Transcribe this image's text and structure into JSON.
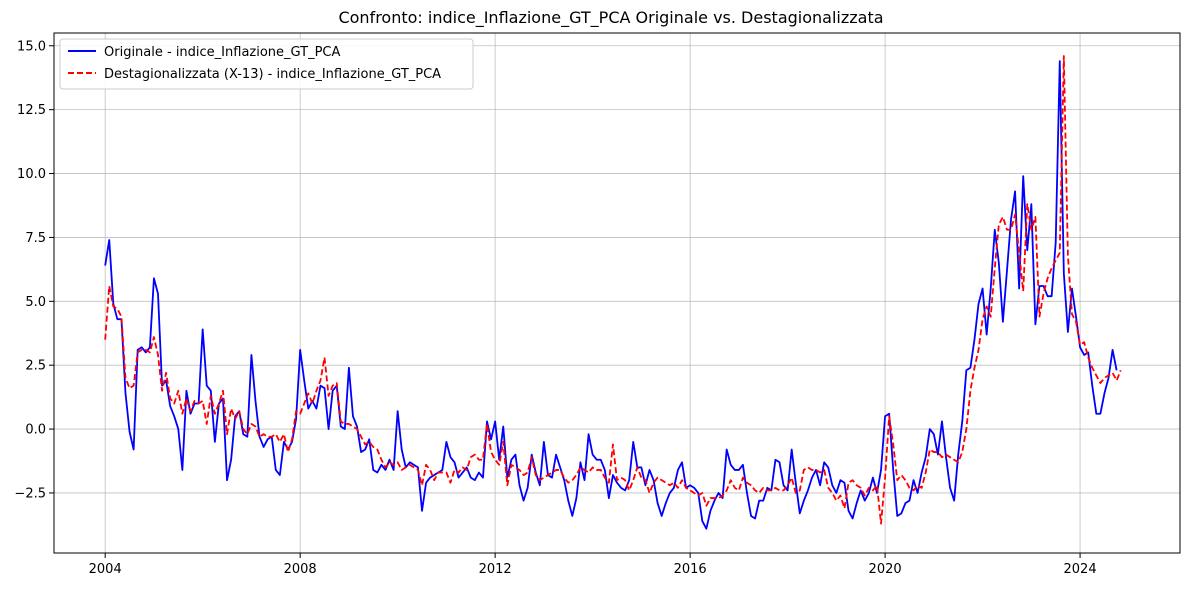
{
  "chart_data": {
    "type": "line",
    "title": "Confronto: indice_Inflazione_GT_PCA Originale vs. Destagionalizzata",
    "xlabel": "",
    "ylabel": "",
    "xlim": [
      2002.95,
      2026.05
    ],
    "ylim": [
      -4.85,
      15.5
    ],
    "x_ticks": [
      2004,
      2008,
      2012,
      2016,
      2020,
      2024
    ],
    "x_tick_labels": [
      "2004",
      "2008",
      "2012",
      "2016",
      "2020",
      "2024"
    ],
    "y_ticks": [
      -2.5,
      0.0,
      2.5,
      5.0,
      7.5,
      10.0,
      12.5,
      15.0
    ],
    "y_tick_labels": [
      "−2.5",
      "0.0",
      "2.5",
      "5.0",
      "7.5",
      "10.0",
      "12.5",
      "15.0"
    ],
    "grid": true,
    "legend_position": "top-left",
    "x_start": 2004.0,
    "x_step_months": 1,
    "series": [
      {
        "name": "Originale - indice_Inflazione_GT_PCA",
        "color": "#0000ff",
        "style": "solid",
        "values": [
          6.4,
          7.4,
          4.9,
          4.3,
          4.3,
          1.4,
          -0.1,
          -0.8,
          3.1,
          3.2,
          3.0,
          3.2,
          5.9,
          5.3,
          1.7,
          1.9,
          0.9,
          0.5,
          0.0,
          -1.6,
          1.5,
          0.6,
          1.0,
          1.0,
          3.9,
          1.7,
          1.5,
          -0.5,
          1.0,
          1.2,
          -2.0,
          -1.2,
          0.5,
          0.7,
          -0.2,
          -0.3,
          2.9,
          1.1,
          -0.3,
          -0.7,
          -0.4,
          -0.3,
          -1.6,
          -1.8,
          -0.5,
          -0.8,
          -0.5,
          0.4,
          3.1,
          1.9,
          0.8,
          1.1,
          0.8,
          1.7,
          1.6,
          0.0,
          1.5,
          1.7,
          0.1,
          0.0,
          2.4,
          0.5,
          0.1,
          -0.9,
          -0.8,
          -0.4,
          -1.6,
          -1.7,
          -1.4,
          -1.6,
          -1.2,
          -1.6,
          0.7,
          -0.8,
          -1.5,
          -1.3,
          -1.4,
          -1.5,
          -3.2,
          -2.1,
          -1.9,
          -1.8,
          -1.7,
          -1.6,
          -0.5,
          -1.1,
          -1.3,
          -1.9,
          -1.7,
          -1.5,
          -1.9,
          -2.0,
          -1.7,
          -1.9,
          0.3,
          -0.4,
          0.3,
          -1.2,
          0.1,
          -1.9,
          -1.2,
          -1.0,
          -2.2,
          -2.8,
          -2.3,
          -1.0,
          -1.7,
          -2.2,
          -0.5,
          -1.8,
          -1.9,
          -1.0,
          -1.5,
          -2.0,
          -2.8,
          -3.4,
          -2.7,
          -1.3,
          -2.0,
          -0.2,
          -1.0,
          -1.2,
          -1.2,
          -1.6,
          -2.7,
          -1.8,
          -2.1,
          -2.3,
          -2.4,
          -2.0,
          -0.5,
          -1.5,
          -1.5,
          -2.2,
          -1.6,
          -2.0,
          -2.9,
          -3.4,
          -2.9,
          -2.5,
          -2.3,
          -1.6,
          -1.3,
          -2.3,
          -2.2,
          -2.3,
          -2.5,
          -3.6,
          -3.9,
          -3.2,
          -2.8,
          -2.5,
          -2.7,
          -0.8,
          -1.4,
          -1.6,
          -1.6,
          -1.4,
          -2.5,
          -3.4,
          -3.5,
          -2.8,
          -2.8,
          -2.3,
          -2.4,
          -1.2,
          -1.3,
          -2.2,
          -2.4,
          -0.8,
          -2.1,
          -3.3,
          -2.8,
          -2.4,
          -1.9,
          -1.6,
          -2.2,
          -1.3,
          -1.5,
          -2.2,
          -2.5,
          -2.0,
          -2.1,
          -3.2,
          -3.5,
          -2.9,
          -2.4,
          -2.8,
          -2.5,
          -1.9,
          -2.5,
          -1.6,
          0.5,
          0.6,
          -1.6,
          -3.4,
          -3.3,
          -2.9,
          -2.8,
          -2.0,
          -2.5,
          -1.7,
          -1.1,
          0.0,
          -0.2,
          -1.0,
          0.3,
          -1.1,
          -2.3,
          -2.8,
          -1.0,
          0.3,
          2.3,
          2.4,
          3.5,
          4.9,
          5.5,
          3.7,
          5.5,
          7.8,
          6.5,
          4.2,
          6.2,
          8.2,
          9.3,
          5.5,
          9.9,
          7.0,
          8.8,
          4.1,
          5.6,
          5.6,
          5.2,
          5.2,
          7.3,
          14.4,
          6.1,
          3.8,
          5.5,
          4.4,
          3.2,
          2.9,
          3.0,
          1.7,
          0.6,
          0.6,
          1.4,
          2.0,
          3.1,
          2.3
        ]
      },
      {
        "name": "Destagionalizzata (X-13) - indice_Inflazione_GT_PCA",
        "color": "#ff0000",
        "style": "dashed",
        "values": [
          3.5,
          5.6,
          4.8,
          4.7,
          4.4,
          2.0,
          1.6,
          1.7,
          3.0,
          3.1,
          3.1,
          3.0,
          3.6,
          2.9,
          1.5,
          2.2,
          1.2,
          1.0,
          1.5,
          0.6,
          1.2,
          0.7,
          1.1,
          1.0,
          1.1,
          0.2,
          1.3,
          0.6,
          1.0,
          1.5,
          -0.2,
          0.8,
          0.4,
          0.7,
          0.0,
          -0.2,
          0.2,
          0.1,
          -0.3,
          -0.2,
          -0.3,
          -0.3,
          -0.2,
          -0.5,
          -0.2,
          -0.9,
          -0.4,
          0.7,
          0.6,
          1.0,
          1.4,
          1.0,
          1.5,
          1.9,
          2.8,
          1.3,
          1.7,
          1.8,
          0.3,
          0.2,
          0.2,
          0.1,
          0.0,
          -0.3,
          -0.6,
          -0.5,
          -0.7,
          -0.8,
          -1.2,
          -1.5,
          -1.3,
          -1.4,
          -1.3,
          -1.6,
          -1.5,
          -1.4,
          -1.5,
          -1.6,
          -2.2,
          -1.4,
          -1.6,
          -2.0,
          -1.7,
          -1.7,
          -1.7,
          -2.1,
          -1.6,
          -1.7,
          -1.5,
          -1.6,
          -1.1,
          -1.0,
          -1.2,
          -1.2,
          0.2,
          -0.9,
          -1.2,
          -1.4,
          -0.5,
          -2.2,
          -1.4,
          -1.5,
          -1.6,
          -1.8,
          -1.7,
          -1.1,
          -1.8,
          -2.0,
          -1.9,
          -1.8,
          -1.7,
          -1.6,
          -1.6,
          -1.9,
          -2.1,
          -2.0,
          -1.8,
          -1.5,
          -1.6,
          -1.7,
          -1.5,
          -1.6,
          -1.6,
          -1.9,
          -2.1,
          -0.6,
          -2.0,
          -1.9,
          -2.0,
          -2.4,
          -2.0,
          -1.5,
          -1.9,
          -2.0,
          -2.5,
          -2.1,
          -1.9,
          -2.0,
          -2.1,
          -2.2,
          -2.1,
          -2.3,
          -2.0,
          -2.3,
          -2.4,
          -2.5,
          -2.6,
          -2.5,
          -3.0,
          -2.7,
          -2.7,
          -2.7,
          -2.6,
          -2.4,
          -2.0,
          -2.3,
          -2.4,
          -1.9,
          -2.1,
          -2.2,
          -2.4,
          -2.5,
          -2.3,
          -2.4,
          -2.4,
          -2.3,
          -2.4,
          -2.4,
          -2.2,
          -1.9,
          -2.5,
          -2.4,
          -1.6,
          -1.5,
          -1.6,
          -1.6,
          -1.7,
          -1.6,
          -2.3,
          -2.5,
          -2.8,
          -2.6,
          -3.1,
          -2.1,
          -2.0,
          -2.2,
          -2.3,
          -2.6,
          -2.3,
          -2.4,
          -2.2,
          -3.7,
          -1.9,
          0.5,
          -0.6,
          -2.0,
          -1.8,
          -2.0,
          -2.3,
          -2.4,
          -2.2,
          -2.3,
          -1.7,
          -0.8,
          -0.9,
          -0.9,
          -1.1,
          -1.0,
          -1.1,
          -1.2,
          -1.3,
          -0.9,
          0.0,
          1.5,
          2.4,
          3.1,
          4.3,
          4.8,
          4.4,
          6.3,
          8.0,
          8.3,
          7.8,
          7.8,
          8.4,
          6.9,
          5.4,
          8.8,
          7.8,
          8.3,
          4.4,
          5.3,
          5.9,
          6.3,
          6.6,
          6.9,
          14.6,
          6.8,
          4.5,
          4.2,
          3.3,
          3.4,
          2.8,
          2.4,
          2.1,
          1.8,
          2.0,
          2.1,
          2.2,
          1.9,
          2.3
        ]
      }
    ]
  }
}
